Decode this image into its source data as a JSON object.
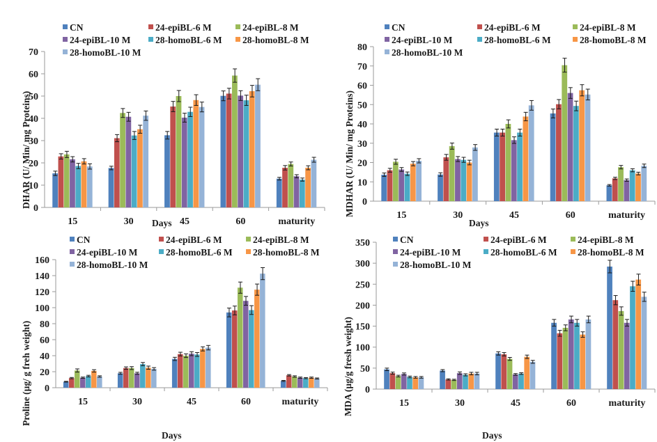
{
  "colors": [
    "#4F81BD",
    "#C0504D",
    "#9BBB59",
    "#8064A2",
    "#4BACC6",
    "#F79646",
    "#95B3D7"
  ],
  "chart_data": [
    {
      "id": "dhar",
      "type": "bar",
      "title": "",
      "xlabel": "Days",
      "ylabel": "DHAR (U/ Min/ mg Proteins)",
      "categories": [
        "15",
        "30",
        "45",
        "60",
        "maturity"
      ],
      "ylim": [
        0,
        70
      ],
      "yticks": [
        0,
        10,
        20,
        30,
        40,
        50,
        60,
        70
      ],
      "grid": false,
      "legend": "top",
      "series": [
        {
          "name": "CN",
          "values": [
            15.3,
            17.7,
            32.4,
            50.1,
            12.9
          ],
          "errors": [
            1.0,
            0.8,
            1.7,
            2.2,
            0.6
          ]
        },
        {
          "name": "24-epiBL-6 M",
          "values": [
            22.9,
            31.1,
            45.3,
            51.1,
            17.8
          ],
          "errors": [
            1.2,
            1.6,
            2.3,
            2.4,
            1.0
          ]
        },
        {
          "name": "24-epiBL-8 M",
          "values": [
            23.8,
            42.4,
            50.0,
            59.2,
            19.5
          ],
          "errors": [
            1.4,
            2.0,
            2.5,
            3.0,
            0.9
          ]
        },
        {
          "name": "24-epiBL-10 M",
          "values": [
            21.6,
            40.7,
            40.3,
            50.2,
            14.0
          ],
          "errors": [
            1.2,
            2.0,
            2.0,
            2.2,
            0.7
          ]
        },
        {
          "name": "28-homoBL-6 M",
          "values": [
            18.6,
            32.3,
            42.9,
            48.1,
            12.5
          ],
          "errors": [
            1.2,
            1.8,
            2.1,
            2.3,
            0.7
          ]
        },
        {
          "name": "28-homoBL-8 M",
          "values": [
            20.7,
            35.1,
            48.2,
            52.2,
            17.8
          ],
          "errors": [
            1.2,
            1.8,
            2.4,
            2.6,
            0.9
          ]
        },
        {
          "name": "28-homoBL-10 M",
          "values": [
            18.4,
            41.2,
            45.1,
            55.1,
            21.4
          ],
          "errors": [
            1.2,
            2.1,
            2.2,
            2.7,
            1.1
          ]
        }
      ]
    },
    {
      "id": "mdhar",
      "type": "bar",
      "title": "",
      "xlabel": "Days",
      "ylabel": "MDHAR (U/ Min/ mg Proteins)",
      "categories": [
        "15",
        "30",
        "45",
        "60",
        "maturity"
      ],
      "ylim": [
        0,
        80
      ],
      "yticks": [
        0,
        10,
        20,
        30,
        40,
        50,
        60,
        70,
        80
      ],
      "grid": false,
      "legend": "top",
      "series": [
        {
          "name": "CN",
          "values": [
            13.7,
            13.8,
            35.5,
            45.4,
            8.2
          ],
          "errors": [
            0.9,
            0.9,
            1.8,
            2.3,
            0.4
          ]
        },
        {
          "name": "24-epiBL-6 M",
          "values": [
            16.0,
            22.7,
            35.5,
            50.2,
            11.8
          ],
          "errors": [
            1.0,
            1.5,
            1.8,
            2.4,
            0.6
          ]
        },
        {
          "name": "24-epiBL-8 M",
          "values": [
            20.4,
            28.5,
            40.0,
            70.4,
            17.6
          ],
          "errors": [
            1.3,
            1.6,
            2.1,
            3.6,
            0.9
          ]
        },
        {
          "name": "24-epiBL-10 M",
          "values": [
            16.4,
            21.8,
            31.6,
            56.0,
            10.9
          ],
          "errors": [
            1.0,
            1.3,
            1.7,
            2.8,
            0.6
          ]
        },
        {
          "name": "28-homoBL-6 M",
          "values": [
            14.2,
            21.4,
            35.5,
            49.3,
            16.0
          ],
          "errors": [
            0.9,
            1.3,
            1.8,
            2.5,
            0.8
          ]
        },
        {
          "name": "28-homoBL-8 M",
          "values": [
            19.4,
            20.0,
            43.8,
            57.4,
            14.3
          ],
          "errors": [
            1.1,
            1.2,
            2.2,
            2.9,
            0.7
          ]
        },
        {
          "name": "28-homoBL-10 M",
          "values": [
            20.9,
            27.8,
            49.6,
            55.2,
            18.3
          ],
          "errors": [
            1.1,
            1.5,
            2.5,
            2.8,
            0.9
          ]
        }
      ]
    },
    {
      "id": "proline",
      "type": "bar",
      "title": "",
      "xlabel": "Days",
      "ylabel": "Proline (µg/ g freh weight)",
      "categories": [
        "15",
        "30",
        "45",
        "60",
        "maturity"
      ],
      "ylim": [
        0,
        160
      ],
      "yticks": [
        0,
        20,
        40,
        60,
        80,
        100,
        120,
        140,
        160
      ],
      "grid": false,
      "legend": "top",
      "series": [
        {
          "name": "CN",
          "values": [
            7.5,
            18.0,
            36.0,
            94.0,
            8.5
          ],
          "errors": [
            0.5,
            1.2,
            2.0,
            5.5,
            0.6
          ]
        },
        {
          "name": "24-epiBL-6 M",
          "values": [
            12.0,
            24.5,
            42.0,
            96.5,
            15.5
          ],
          "errors": [
            0.8,
            1.5,
            2.3,
            5.5,
            0.9
          ]
        },
        {
          "name": "24-epiBL-8 M",
          "values": [
            21.5,
            24.5,
            40.0,
            125.0,
            14.0
          ],
          "errors": [
            2.0,
            1.8,
            2.3,
            7.0,
            0.9
          ]
        },
        {
          "name": "24-epiBL-10 M",
          "values": [
            12.5,
            18.0,
            42.5,
            108.5,
            12.5
          ],
          "errors": [
            0.8,
            1.3,
            2.5,
            5.5,
            0.8
          ]
        },
        {
          "name": "28-homoBL-6 M",
          "values": [
            14.5,
            29.5,
            41.5,
            97.0,
            12.0
          ],
          "errors": [
            1.0,
            2.0,
            2.4,
            5.5,
            0.7
          ]
        },
        {
          "name": "28-homoBL-8 M",
          "values": [
            21.0,
            25.0,
            48.5,
            122.5,
            12.5
          ],
          "errors": [
            1.5,
            2.0,
            2.6,
            7.0,
            0.8
          ]
        },
        {
          "name": "28-homoBL-10 M",
          "values": [
            14.0,
            23.5,
            50.0,
            142.5,
            11.5
          ],
          "errors": [
            0.9,
            1.6,
            2.8,
            7.5,
            0.7
          ]
        }
      ]
    },
    {
      "id": "mda",
      "type": "bar",
      "title": "",
      "xlabel": "Days",
      "ylabel": "MDA (µg/g fresh weight)",
      "categories": [
        "15",
        "30",
        "45",
        "60",
        "maturity"
      ],
      "ylim": [
        0,
        350
      ],
      "yticks": [
        0,
        50,
        100,
        150,
        200,
        250,
        300,
        350
      ],
      "grid": false,
      "legend": "top",
      "series": [
        {
          "name": "CN",
          "values": [
            47,
            44,
            85,
            158,
            292
          ],
          "errors": [
            3,
            2.5,
            4,
            8,
            15
          ]
        },
        {
          "name": "24-epiBL-6 M",
          "values": [
            38,
            23,
            83,
            133,
            212
          ],
          "errors": [
            2.5,
            1.5,
            4,
            7,
            11
          ]
        },
        {
          "name": "24-epiBL-8 M",
          "values": [
            31,
            22,
            72,
            146,
            186
          ],
          "errors": [
            2,
            1.5,
            3.5,
            7,
            10
          ]
        },
        {
          "name": "24-epiBL-10 M",
          "values": [
            36,
            38,
            35,
            166,
            158
          ],
          "errors": [
            2.5,
            3,
            2,
            8,
            8
          ]
        },
        {
          "name": "28-homoBL-6 M",
          "values": [
            29,
            34,
            37,
            158,
            245
          ],
          "errors": [
            2,
            2.5,
            2,
            8,
            12
          ]
        },
        {
          "name": "28-homoBL-8 M",
          "values": [
            28,
            37,
            77,
            130,
            261
          ],
          "errors": [
            2,
            3,
            4,
            6.5,
            13
          ]
        },
        {
          "name": "28-homoBL-10 M",
          "values": [
            28,
            37,
            65,
            166,
            220
          ],
          "errors": [
            2,
            3,
            3.5,
            8,
            11
          ]
        }
      ]
    }
  ]
}
